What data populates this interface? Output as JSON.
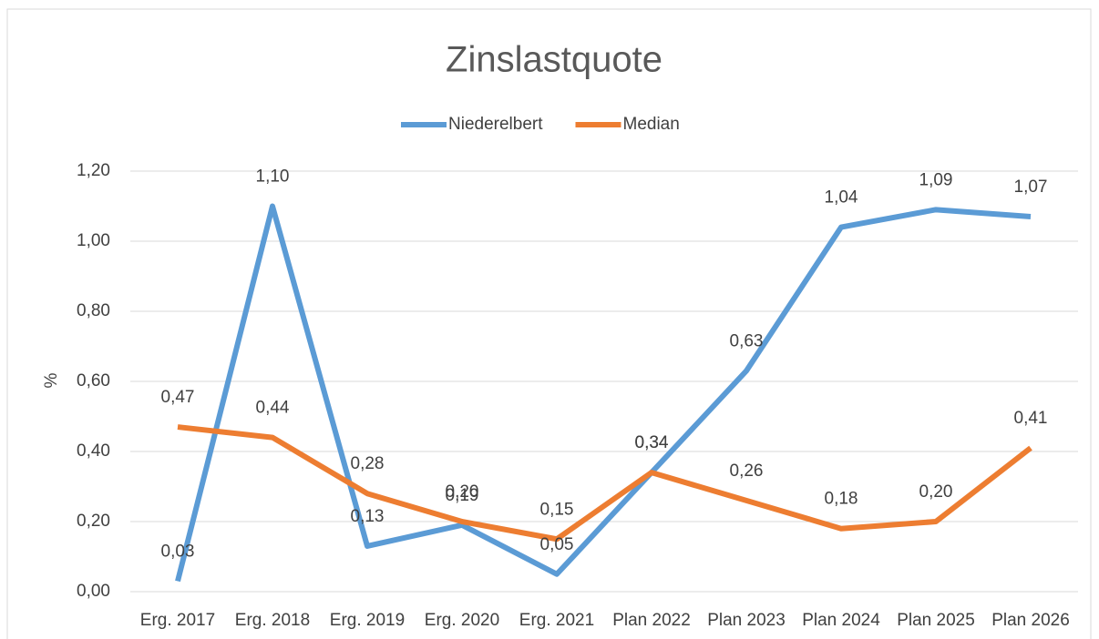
{
  "chart_data": {
    "type": "line",
    "title": "Zinslastquote",
    "y_label": "%",
    "categories": [
      "Erg. 2017",
      "Erg. 2018",
      "Erg. 2019",
      "Erg. 2020",
      "Erg. 2021",
      "Plan 2022",
      "Plan 2023",
      "Plan 2024",
      "Plan 2025",
      "Plan 2026"
    ],
    "series": [
      {
        "name": "Niederelbert",
        "color": "#5b9bd5",
        "values": [
          0.03,
          1.1,
          0.13,
          0.19,
          0.05,
          0.34,
          0.63,
          1.04,
          1.09,
          1.07
        ],
        "value_labels": [
          "0,03",
          "1,10",
          "0,13",
          "0,19",
          "0,05",
          "0,34",
          "0,63",
          "1,04",
          "1,09",
          "1,07"
        ]
      },
      {
        "name": "Median",
        "color": "#ed7d31",
        "values": [
          0.47,
          0.44,
          0.28,
          0.2,
          0.15,
          0.34,
          0.26,
          0.18,
          0.2,
          0.41
        ],
        "value_labels": [
          "0,47",
          "0,44",
          "0,28",
          "0,20",
          "0,15",
          "0,34",
          "0,26",
          "0,18",
          "0,20",
          "0,41"
        ]
      }
    ],
    "ylim": [
      0,
      1.2
    ],
    "yticks": [
      {
        "value": 0,
        "label": "0,00"
      },
      {
        "value": 0.2,
        "label": "0,20"
      },
      {
        "value": 0.4,
        "label": "0,40"
      },
      {
        "value": 0.6,
        "label": "0,60"
      },
      {
        "value": 0.8,
        "label": "0,80"
      },
      {
        "value": 1.0,
        "label": "1,00"
      },
      {
        "value": 1.2,
        "label": "1,20"
      }
    ],
    "grid": true,
    "legend": "top"
  }
}
